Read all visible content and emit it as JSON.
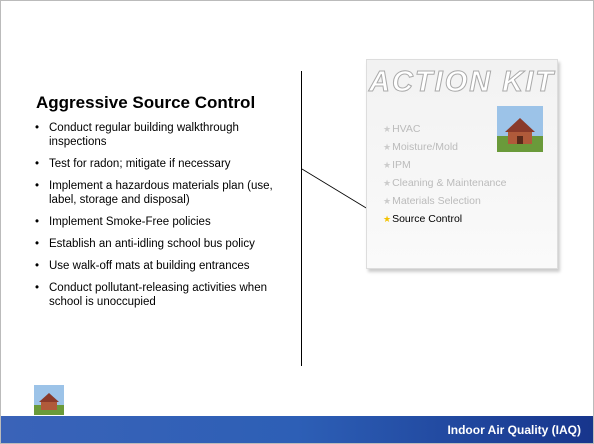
{
  "title": "Aggressive Source Control",
  "bullets": [
    "Conduct regular building walkthrough inspections",
    "Test for radon; mitigate if necessary",
    "Implement a hazardous materials plan (use, label, storage and disposal)",
    "Implement Smoke-Free policies",
    "Establish an anti-idling school bus policy",
    "Use walk-off mats at building entrances",
    "Conduct pollutant-releasing activities when school is unoccupied"
  ],
  "action_kit": {
    "title": "ACTION KIT",
    "items": [
      "HVAC",
      "Moisture/Mold",
      "IPM",
      "Cleaning & Maintenance",
      "Materials Selection",
      "Source Control"
    ],
    "active_item": 5
  },
  "footer": "Indoor Air Quality (IAQ)"
}
